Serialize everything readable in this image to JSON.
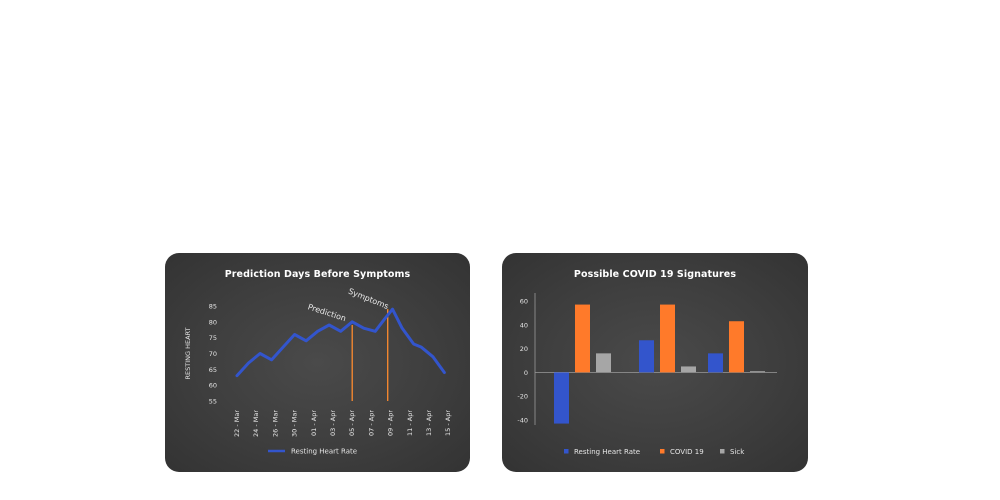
{
  "chart_data": [
    {
      "type": "line",
      "title": "Prediction Days Before Symptoms",
      "ylabel": "RESTING HEART",
      "xlabel": "",
      "ylim": [
        55,
        85
      ],
      "yticks": [
        55,
        60,
        65,
        70,
        75,
        80,
        85
      ],
      "categories": [
        "22 - Mar",
        "24 - Mar",
        "26 - Mar",
        "30 - Mar",
        "01 - Apr",
        "03 - Apr",
        "05 - Apr",
        "07 - Apr",
        "09 - Apr",
        "11 - Apr",
        "13 - Apr",
        "15 - Apr"
      ],
      "series": [
        {
          "name": "Resting Heart Rate",
          "color": "#3355cc",
          "x": [
            0,
            0.6,
            1.2,
            1.8,
            2.4,
            3.0,
            3.6,
            4.2,
            4.8,
            5.4,
            6.0,
            6.6,
            7.2,
            7.7,
            8.1,
            8.6,
            9.2,
            9.6,
            10.2,
            10.8
          ],
          "values": [
            63,
            67,
            70,
            68,
            72,
            76,
            74,
            77,
            79,
            77,
            80,
            78,
            77,
            81,
            84,
            78,
            73,
            72,
            69,
            64
          ]
        }
      ],
      "markers": [
        {
          "label": "Prediction",
          "x": 6.0,
          "color": "#ff8c2e"
        },
        {
          "label": "Symptoms",
          "x": 7.85,
          "color": "#ff8c2e"
        }
      ],
      "legend": "bottom"
    },
    {
      "type": "bar",
      "title": "Possible COVID 19 Signatures",
      "ylim": [
        -40,
        60
      ],
      "yticks": [
        -40,
        -20,
        0,
        20,
        40,
        60
      ],
      "categories": [
        "",
        "",
        ""
      ],
      "series": [
        {
          "name": "Resting Heart Rate",
          "color": "#3355cc",
          "values": [
            -43,
            27,
            16
          ]
        },
        {
          "name": "COVID 19",
          "color": "#ff7a2a",
          "values": [
            57,
            57,
            43
          ]
        },
        {
          "name": "Sick",
          "color": "#a6a6a6",
          "values": [
            16,
            5,
            1
          ]
        }
      ],
      "legend": "bottom"
    }
  ]
}
